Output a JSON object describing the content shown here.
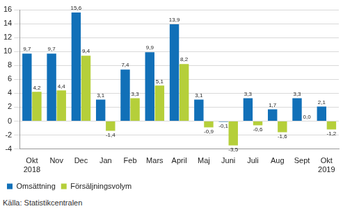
{
  "chart_data": {
    "type": "bar",
    "source": "Källa: Statistikcentralen",
    "categories": [
      [
        "Okt",
        "2018"
      ],
      "Nov",
      "Dec",
      "Jan",
      "Feb",
      "Mars",
      "April",
      "Maj",
      "Juni",
      "Juli",
      "Aug",
      "Sept",
      [
        "Okt",
        "2019"
      ]
    ],
    "series": [
      {
        "name": "Omsättning",
        "color": "#1170b8",
        "values": [
          9.7,
          9.7,
          15.6,
          3.1,
          7.4,
          9.9,
          13.9,
          3.1,
          -0.1,
          3.3,
          1.7,
          3.3,
          2.1
        ],
        "value_labels": [
          "9,7",
          "9,7",
          "15,6",
          "3,1",
          "7,4",
          "9,9",
          "13,9",
          "3,1",
          "-0,1",
          "3,3",
          "1,7",
          "3,3",
          "2,1"
        ]
      },
      {
        "name": "Försäljningsvolym",
        "color": "#b5cf3a",
        "values": [
          4.2,
          4.4,
          9.4,
          -1.4,
          3.3,
          5.1,
          8.2,
          -0.9,
          -3.5,
          -0.6,
          -1.6,
          0.0,
          -1.2
        ],
        "value_labels": [
          "4,2",
          "4,4",
          "9,4",
          "-1,4",
          "3,3",
          "5,1",
          "8,2",
          "-0,9",
          "-3,5",
          "-0,6",
          "-1,6",
          "0,0",
          "-1,2"
        ]
      }
    ],
    "ylim": [
      -4,
      16
    ],
    "yticks": [
      -4,
      -2,
      0,
      2,
      4,
      6,
      8,
      10,
      12,
      14,
      16
    ],
    "grid": true,
    "legend": "bottom-left",
    "data_labels": true
  }
}
